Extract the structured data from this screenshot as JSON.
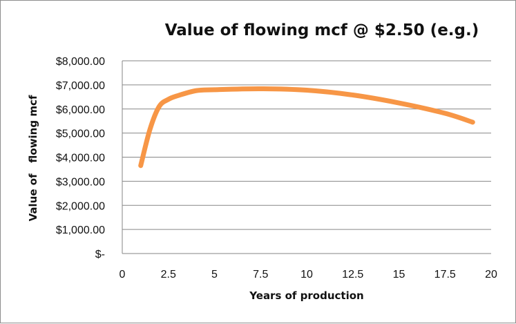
{
  "chart_data": {
    "type": "line",
    "title": "Value of flowing mcf @ $2.50 (e.g.)",
    "xlabel": "Years of production",
    "ylabel": "Value of   flowing mcf",
    "xlim": [
      0,
      20
    ],
    "ylim": [
      0,
      8000
    ],
    "x_ticks": [
      0,
      2.5,
      5,
      7.5,
      10,
      12.5,
      15,
      17.5,
      20
    ],
    "x_tick_labels": [
      "0",
      "2.5",
      "5",
      "7.5",
      "10",
      "12.5",
      "15",
      "17.5",
      "20"
    ],
    "y_ticks": [
      0,
      1000,
      2000,
      3000,
      4000,
      5000,
      6000,
      7000,
      8000
    ],
    "y_tick_labels": [
      "$-",
      "$1,000.00",
      "$2,000.00",
      "$3,000.00",
      "$4,000.00",
      "$5,000.00",
      "$6,000.00",
      "$7,000.00",
      "$8,000.00"
    ],
    "grid": "horizontal",
    "legend": "none",
    "series": [
      {
        "color": "#f79646",
        "x": [
          1,
          1.5,
          2,
          2.5,
          3,
          4,
          5,
          7.5,
          10,
          12.5,
          15,
          17.5,
          19
        ],
        "y": [
          3650,
          5150,
          6100,
          6400,
          6550,
          6760,
          6800,
          6840,
          6780,
          6580,
          6250,
          5820,
          5450
        ]
      }
    ]
  }
}
